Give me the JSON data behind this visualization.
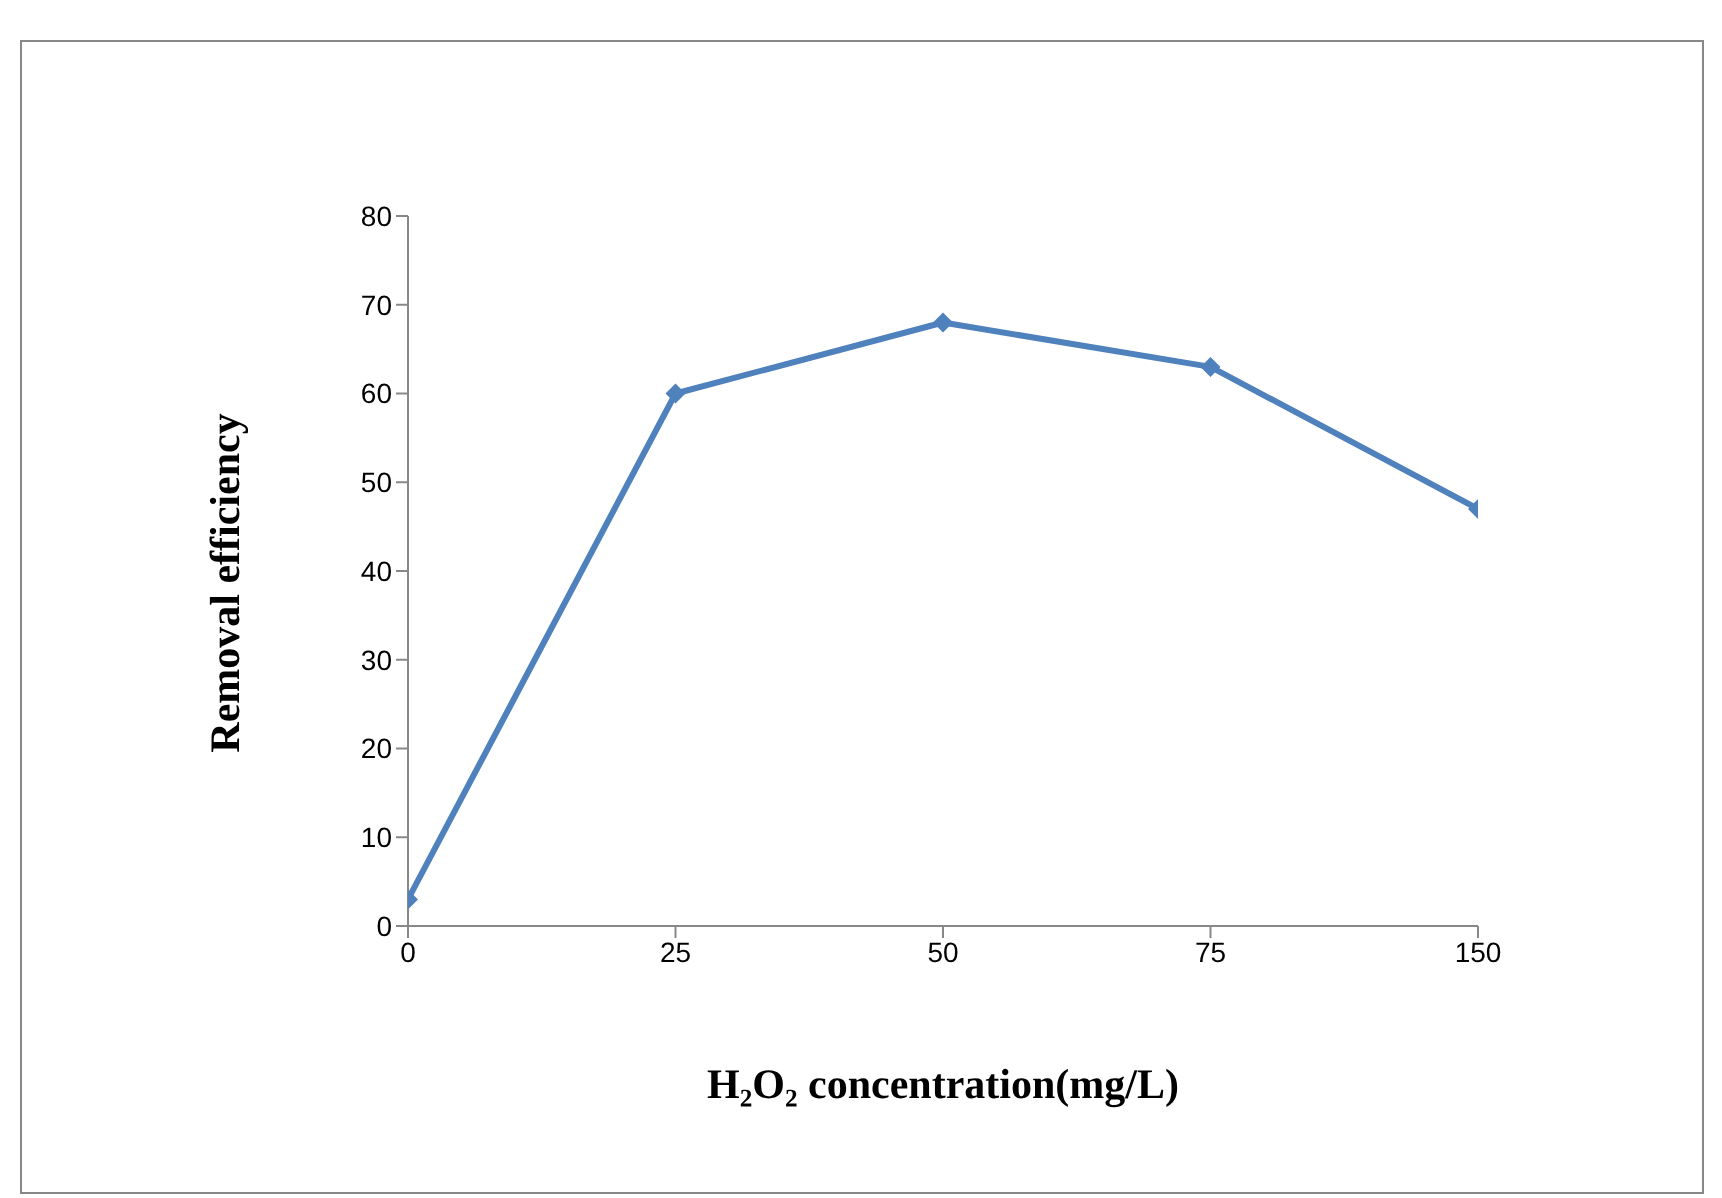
{
  "chart_data": {
    "type": "line",
    "xlabel": "H₂O₂ concentration(mg/L)",
    "ylabel": "Removal efficiency",
    "categories": [
      "0",
      "25",
      "50",
      "75",
      "150"
    ],
    "series": [
      {
        "color": "#4f81bd",
        "values": [
          3,
          60,
          68,
          63,
          47
        ]
      }
    ],
    "ylim": [
      0,
      80
    ],
    "yticks": [
      0,
      10,
      20,
      30,
      40,
      50,
      60,
      70,
      80
    ],
    "grid": false,
    "legend": false,
    "marker": "diamond",
    "line_style": "solid"
  }
}
